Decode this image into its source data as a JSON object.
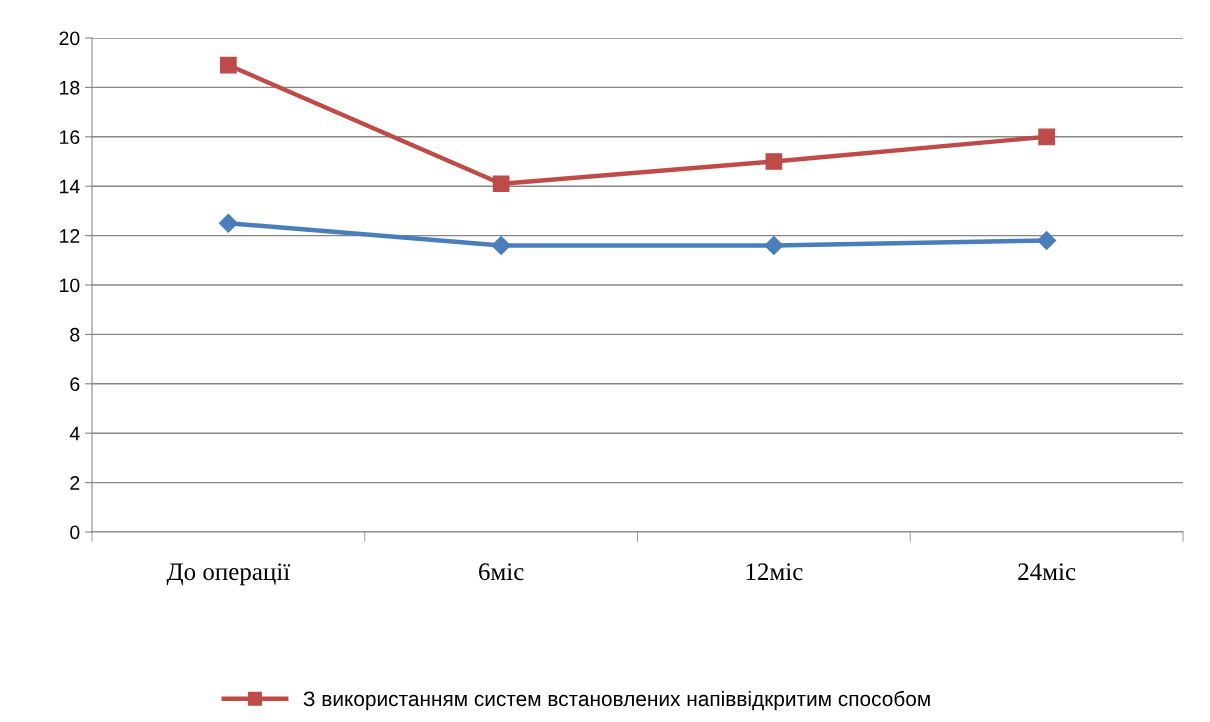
{
  "chart_data": {
    "type": "line",
    "categories": [
      "До операції",
      "6міс",
      "12міс",
      "24міс"
    ],
    "series": [
      {
        "color": "#4a7ebb",
        "values": [
          12.5,
          11.6,
          11.6,
          11.8
        ],
        "marker": "diamond"
      },
      {
        "name": "З використанням систем встановлених напіввідкритим способом",
        "color": "#be4b48",
        "values": [
          18.9,
          14.1,
          15.0,
          16.0
        ],
        "marker": "square"
      }
    ],
    "ylim": [
      0,
      20
    ],
    "yticks": [
      0,
      2,
      4,
      6,
      8,
      10,
      12,
      14,
      16,
      18,
      20
    ],
    "grid": "y",
    "legend": "bottom",
    "line_style": "solid"
  }
}
